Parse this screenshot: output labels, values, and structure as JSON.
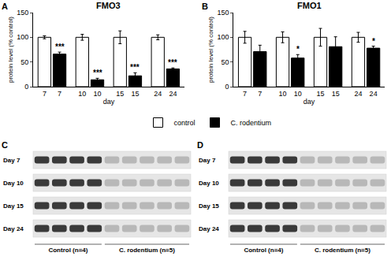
{
  "chart_data": [
    {
      "type": "bar",
      "panel": "A",
      "title": "FMO3",
      "x_label": "day",
      "y_label": "protein level (% control)",
      "categories": [
        "7",
        "10",
        "15",
        "24"
      ],
      "series": [
        {
          "name": "control",
          "color": "#ffffff",
          "values": [
            100,
            100,
            100,
            100
          ],
          "errors": [
            3,
            6,
            13,
            5
          ]
        },
        {
          "name": "C. rodentium",
          "color": "#000000",
          "values": [
            66,
            14,
            22,
            36
          ],
          "errors": [
            4,
            3,
            6,
            2
          ]
        }
      ],
      "annotations": [
        {
          "text": "***",
          "category": "7",
          "series": "C. rodentium"
        },
        {
          "text": "***",
          "category": "10",
          "series": "C. rodentium"
        },
        {
          "text": "***",
          "category": "15",
          "series": "C. rodentium"
        },
        {
          "text": "***",
          "category": "24",
          "series": "C. rodentium"
        }
      ],
      "ylim": [
        0,
        150
      ],
      "yticks": [
        0,
        50,
        100,
        150
      ],
      "grid": false,
      "legend": "bottom"
    },
    {
      "type": "bar",
      "panel": "B",
      "title": "FMO1",
      "x_label": "day",
      "y_label": "protein level (% control)",
      "categories": [
        "7",
        "10",
        "15",
        "24"
      ],
      "series": [
        {
          "name": "control",
          "color": "#ffffff",
          "values": [
            100,
            100,
            100,
            100
          ],
          "errors": [
            12,
            11,
            18,
            10
          ]
        },
        {
          "name": "C. rodentium",
          "color": "#000000",
          "values": [
            71,
            58,
            81,
            78
          ],
          "errors": [
            13,
            7,
            20,
            4
          ]
        }
      ],
      "annotations": [
        {
          "text": "*",
          "category": "10",
          "series": "C. rodentium"
        },
        {
          "text": "*",
          "category": "24",
          "series": "C. rodentium"
        }
      ],
      "ylim": [
        0,
        150
      ],
      "yticks": [
        0,
        50,
        100,
        150
      ],
      "grid": false
    }
  ],
  "blots": [
    {
      "panel": "C",
      "rows": [
        "Day 7",
        "Day 10",
        "Day 15",
        "Day 24"
      ],
      "groups": [
        {
          "label": "Control (n=4)",
          "lanes": 4
        },
        {
          "label": "C. rodentium (n=5)",
          "lanes": 5
        }
      ]
    },
    {
      "panel": "D",
      "rows": [
        "Day 7",
        "Day 10",
        "Day 15",
        "Day 24"
      ],
      "groups": [
        {
          "label": "Control (n=4)",
          "lanes": 4
        },
        {
          "label": "C. rodentium (n=5)",
          "lanes": 5
        }
      ]
    }
  ]
}
